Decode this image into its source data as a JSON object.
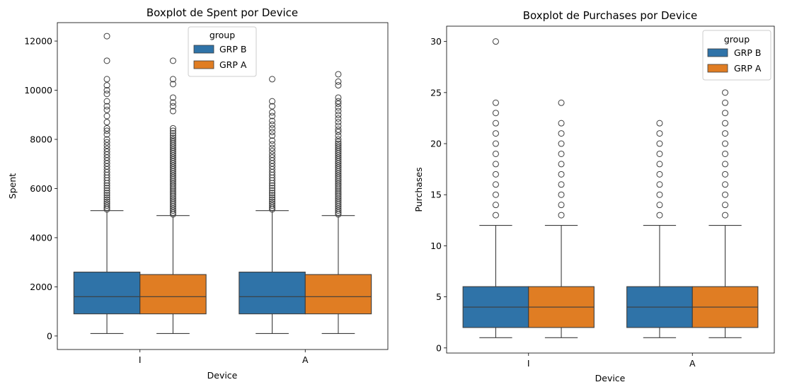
{
  "chart_data": [
    {
      "type": "boxplot",
      "title": "Boxplot de Spent por Device",
      "xlabel": "Device",
      "ylabel": "Spent",
      "categories": [
        "I",
        "A"
      ],
      "ylim": [
        -550,
        12750
      ],
      "yticks": [
        0,
        2000,
        4000,
        6000,
        8000,
        10000,
        12000
      ],
      "legend": {
        "title": "group",
        "position": "top-center"
      },
      "series": [
        {
          "name": "GRP B",
          "color": "#2f73a8",
          "boxes": [
            {
              "whisker_low": 100,
              "q1": 900,
              "median": 1600,
              "q3": 2600,
              "whisker_high": 5100,
              "outliers": [
                5150,
                5220,
                5300,
                5380,
                5460,
                5550,
                5640,
                5730,
                5820,
                5920,
                6020,
                6120,
                6220,
                6330,
                6440,
                6550,
                6660,
                6780,
                6900,
                7020,
                7140,
                7260,
                7380,
                7500,
                7620,
                7750,
                7880,
                8000,
                8200,
                8350,
                8450,
                8700,
                8950,
                9200,
                9350,
                9550,
                9850,
                10000,
                10200,
                10450,
                11200,
                12200
              ]
            },
            {
              "whisker_low": 100,
              "q1": 900,
              "median": 1600,
              "q3": 2600,
              "whisker_high": 5100,
              "outliers": [
                5150,
                5220,
                5300,
                5380,
                5460,
                5550,
                5640,
                5730,
                5820,
                5920,
                6020,
                6120,
                6220,
                6330,
                6440,
                6550,
                6660,
                6780,
                6900,
                7020,
                7140,
                7260,
                7380,
                7520,
                7650,
                7800,
                7950,
                8150,
                8300,
                8450,
                8600,
                8750,
                8950,
                9100,
                9350,
                9550,
                10450
              ]
            }
          ]
        },
        {
          "name": "GRP A",
          "color": "#e07d23",
          "boxes": [
            {
              "whisker_low": 100,
              "q1": 900,
              "median": 1600,
              "q3": 2500,
              "whisker_high": 4900,
              "outliers": [
                4950,
                5020,
                5100,
                5180,
                5260,
                5340,
                5420,
                5500,
                5580,
                5660,
                5740,
                5820,
                5900,
                5980,
                6060,
                6140,
                6220,
                6300,
                6380,
                6460,
                6540,
                6620,
                6700,
                6780,
                6860,
                6940,
                7020,
                7100,
                7180,
                7260,
                7340,
                7420,
                7500,
                7580,
                7660,
                7740,
                7820,
                7900,
                7980,
                8060,
                8150,
                8250,
                8350,
                8450,
                9150,
                9350,
                9500,
                9700,
                10250,
                10450,
                11200
              ]
            },
            {
              "whisker_low": 100,
              "q1": 900,
              "median": 1600,
              "q3": 2500,
              "whisker_high": 4900,
              "outliers": [
                4950,
                5020,
                5100,
                5180,
                5260,
                5340,
                5420,
                5500,
                5580,
                5660,
                5740,
                5820,
                5900,
                5980,
                6060,
                6140,
                6220,
                6300,
                6380,
                6460,
                6540,
                6620,
                6700,
                6780,
                6860,
                6940,
                7020,
                7100,
                7180,
                7260,
                7340,
                7420,
                7500,
                7580,
                7660,
                7740,
                7820,
                7900,
                8000,
                8150,
                8300,
                8400,
                8550,
                8700,
                8850,
                9000,
                9150,
                9300,
                9450,
                9550,
                9700,
                10200,
                10350,
                10650
              ]
            }
          ]
        }
      ]
    },
    {
      "type": "boxplot",
      "title": "Boxplot de Purchases por Device",
      "xlabel": "Device",
      "ylabel": "Purchases",
      "categories": [
        "I",
        "A"
      ],
      "ylim": [
        -0.5,
        31.5
      ],
      "yticks": [
        0,
        5,
        10,
        15,
        20,
        25,
        30
      ],
      "legend": {
        "title": "group",
        "position": "top-right"
      },
      "series": [
        {
          "name": "GRP B",
          "color": "#2f73a8",
          "boxes": [
            {
              "whisker_low": 1,
              "q1": 2,
              "median": 4,
              "q3": 6,
              "whisker_high": 12,
              "outliers": [
                13,
                14,
                15,
                16,
                17,
                18,
                19,
                20,
                21,
                22,
                23,
                24,
                30
              ]
            },
            {
              "whisker_low": 1,
              "q1": 2,
              "median": 4,
              "q3": 6,
              "whisker_high": 12,
              "outliers": [
                13,
                14,
                15,
                16,
                17,
                18,
                19,
                20,
                21,
                22
              ]
            }
          ]
        },
        {
          "name": "GRP A",
          "color": "#e07d23",
          "boxes": [
            {
              "whisker_low": 1,
              "q1": 2,
              "median": 4,
              "q3": 6,
              "whisker_high": 12,
              "outliers": [
                13,
                14,
                15,
                16,
                17,
                18,
                19,
                20,
                21,
                22,
                24
              ]
            },
            {
              "whisker_low": 1,
              "q1": 2,
              "median": 4,
              "q3": 6,
              "whisker_high": 12,
              "outliers": [
                13,
                14,
                15,
                16,
                17,
                18,
                19,
                20,
                21,
                22,
                23,
                24,
                25
              ]
            }
          ]
        }
      ]
    }
  ]
}
